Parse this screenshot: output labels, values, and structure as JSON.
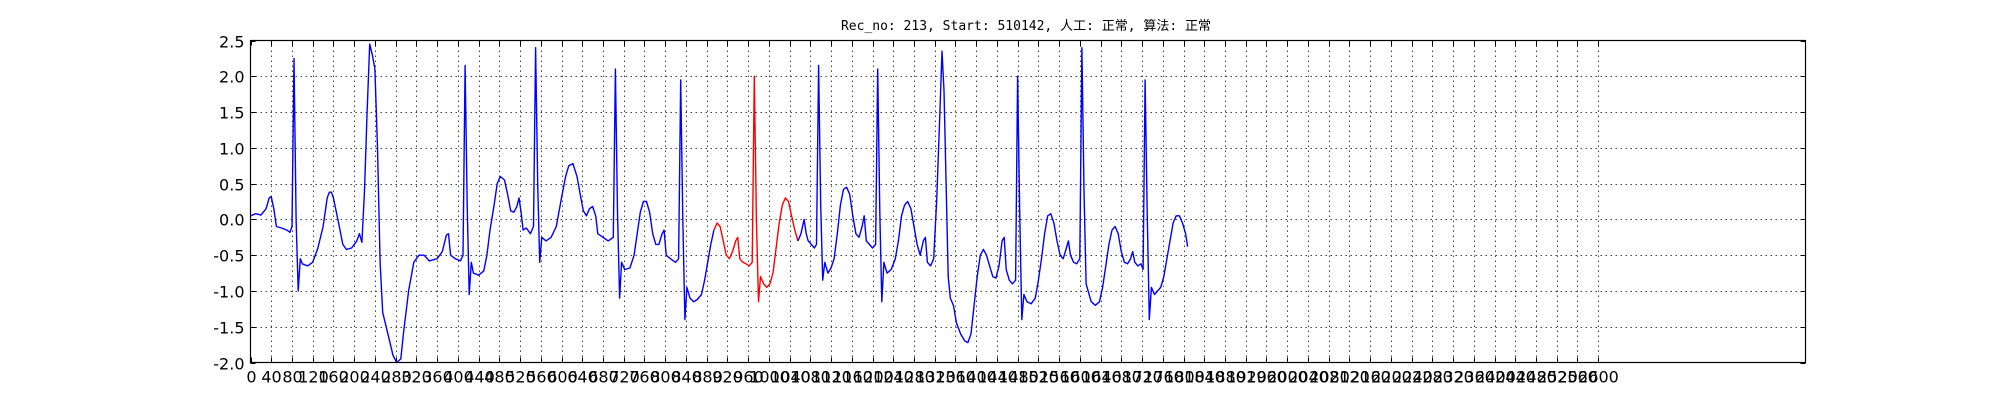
{
  "chart_data": {
    "type": "line",
    "title": "Rec_no: 213, Start: 510142, 人工: 正常, 算法: 正常",
    "xlabel": "",
    "ylabel": "",
    "xlim": [
      0,
      3000
    ],
    "ylim": [
      -2.0,
      2.5
    ],
    "grid": true,
    "yticks": [
      -2.0,
      -1.5,
      -1.0,
      -0.5,
      0.0,
      0.5,
      1.0,
      1.5,
      2.0,
      2.5
    ],
    "ytick_labels": [
      "-2.0",
      "-1.5",
      "-1.0",
      "-0.5",
      "0.0",
      "0.5",
      "1.0",
      "1.5",
      "2.0",
      "2.5"
    ],
    "xticks": [
      0,
      40,
      80,
      120,
      160,
      200,
      240,
      280,
      320,
      360,
      400,
      440,
      480,
      520,
      560,
      600,
      640,
      680,
      720,
      760,
      800,
      840,
      880,
      920,
      960,
      1000,
      1040,
      1080,
      1120,
      1160,
      1200,
      1240,
      1280,
      1320,
      1360,
      1400,
      1440,
      1480,
      1520,
      1560,
      1600,
      1640,
      1680,
      1720,
      1760,
      1800,
      1840,
      1880,
      1920,
      1960,
      2000,
      2040,
      2080,
      2120,
      2160,
      2200,
      2240,
      2280,
      2320,
      2360,
      2400,
      2440,
      2480,
      2520,
      2560,
      2600
    ],
    "series": [
      {
        "color": "#0000ff",
        "points": [
          [
            0,
            0.05
          ],
          [
            10,
            0.08
          ],
          [
            20,
            0.06
          ],
          [
            30,
            0.15
          ],
          [
            36,
            0.3
          ],
          [
            40,
            0.32
          ],
          [
            45,
            0.15
          ],
          [
            50,
            -0.1
          ],
          [
            60,
            -0.12
          ],
          [
            70,
            -0.15
          ],
          [
            76,
            -0.18
          ],
          [
            80,
            -0.1
          ],
          [
            84,
            2.25
          ],
          [
            88,
            0.0
          ],
          [
            92,
            -1.0
          ],
          [
            96,
            -0.55
          ],
          [
            100,
            -0.62
          ],
          [
            110,
            -0.65
          ],
          [
            120,
            -0.6
          ],
          [
            130,
            -0.4
          ],
          [
            140,
            -0.1
          ],
          [
            148,
            0.3
          ],
          [
            152,
            0.38
          ],
          [
            156,
            0.38
          ],
          [
            160,
            0.3
          ],
          [
            170,
            -0.05
          ],
          [
            178,
            -0.35
          ],
          [
            185,
            -0.42
          ],
          [
            195,
            -0.4
          ],
          [
            205,
            -0.3
          ],
          [
            210,
            -0.2
          ],
          [
            215,
            -0.32
          ],
          [
            220,
            0.4
          ],
          [
            225,
            1.5
          ],
          [
            230,
            2.45
          ],
          [
            235,
            2.3
          ],
          [
            240,
            2.1
          ],
          [
            245,
            1.0
          ],
          [
            250,
            -0.6
          ],
          [
            255,
            -1.3
          ],
          [
            265,
            -1.6
          ],
          [
            275,
            -1.9
          ],
          [
            282,
            -2.0
          ],
          [
            290,
            -1.95
          ],
          [
            295,
            -1.6
          ],
          [
            305,
            -1.0
          ],
          [
            315,
            -0.6
          ],
          [
            325,
            -0.5
          ],
          [
            335,
            -0.5
          ],
          [
            345,
            -0.58
          ],
          [
            360,
            -0.55
          ],
          [
            370,
            -0.45
          ],
          [
            378,
            -0.22
          ],
          [
            382,
            -0.2
          ],
          [
            386,
            -0.5
          ],
          [
            395,
            -0.55
          ],
          [
            405,
            -0.58
          ],
          [
            410,
            -0.5
          ],
          [
            414,
            2.15
          ],
          [
            418,
            0.2
          ],
          [
            422,
            -1.05
          ],
          [
            426,
            -0.6
          ],
          [
            430,
            -0.75
          ],
          [
            440,
            -0.78
          ],
          [
            450,
            -0.72
          ],
          [
            456,
            -0.5
          ],
          [
            462,
            -0.15
          ],
          [
            470,
            0.2
          ],
          [
            476,
            0.5
          ],
          [
            482,
            0.6
          ],
          [
            490,
            0.55
          ],
          [
            496,
            0.35
          ],
          [
            502,
            0.12
          ],
          [
            508,
            0.1
          ],
          [
            514,
            0.18
          ],
          [
            518,
            0.3
          ],
          [
            522,
            0.1
          ],
          [
            526,
            -0.15
          ],
          [
            532,
            -0.12
          ],
          [
            540,
            -0.2
          ],
          [
            546,
            -0.1
          ],
          [
            550,
            2.4
          ],
          [
            554,
            0.5
          ],
          [
            558,
            -0.6
          ],
          [
            562,
            -0.25
          ],
          [
            570,
            -0.3
          ],
          [
            580,
            -0.25
          ],
          [
            590,
            -0.1
          ],
          [
            600,
            0.3
          ],
          [
            608,
            0.6
          ],
          [
            614,
            0.75
          ],
          [
            622,
            0.78
          ],
          [
            630,
            0.6
          ],
          [
            636,
            0.35
          ],
          [
            642,
            0.12
          ],
          [
            648,
            0.05
          ],
          [
            654,
            0.15
          ],
          [
            660,
            0.18
          ],
          [
            666,
            0.05
          ],
          [
            670,
            -0.2
          ],
          [
            680,
            -0.25
          ],
          [
            690,
            -0.3
          ],
          [
            700,
            -0.25
          ],
          [
            704,
            2.1
          ],
          [
            708,
            0.1
          ],
          [
            712,
            -1.1
          ],
          [
            716,
            -0.6
          ],
          [
            722,
            -0.7
          ],
          [
            732,
            -0.68
          ],
          [
            740,
            -0.5
          ],
          [
            746,
            -0.2
          ],
          [
            752,
            0.1
          ],
          [
            758,
            0.25
          ],
          [
            764,
            0.25
          ],
          [
            770,
            0.1
          ],
          [
            776,
            -0.2
          ],
          [
            782,
            -0.35
          ],
          [
            788,
            -0.35
          ],
          [
            794,
            -0.2
          ],
          [
            798,
            -0.15
          ],
          [
            802,
            -0.5
          ],
          [
            810,
            -0.55
          ],
          [
            820,
            -0.6
          ],
          [
            826,
            -0.55
          ],
          [
            830,
            1.95
          ],
          [
            834,
            0.0
          ],
          [
            838,
            -1.4
          ],
          [
            842,
            -0.95
          ],
          [
            848,
            -1.1
          ],
          [
            855,
            -1.15
          ],
          [
            862,
            -1.12
          ],
          [
            870,
            -1.05
          ],
          [
            876,
            -0.85
          ],
          [
            882,
            -0.6
          ],
          [
            888,
            -0.35
          ],
          [
            894,
            -0.15
          ]
        ]
      },
      {
        "color": "#ff0000",
        "points": [
          [
            894,
            -0.15
          ],
          [
            900,
            -0.05
          ],
          [
            906,
            -0.1
          ],
          [
            912,
            -0.3
          ],
          [
            918,
            -0.5
          ],
          [
            924,
            -0.55
          ],
          [
            930,
            -0.45
          ],
          [
            936,
            -0.3
          ],
          [
            940,
            -0.25
          ],
          [
            944,
            -0.55
          ],
          [
            950,
            -0.6
          ],
          [
            956,
            -0.62
          ],
          [
            962,
            -0.65
          ],
          [
            968,
            -0.6
          ],
          [
            972,
            2.0
          ],
          [
            976,
            0.0
          ],
          [
            980,
            -1.15
          ],
          [
            984,
            -0.8
          ],
          [
            990,
            -0.9
          ],
          [
            996,
            -0.95
          ],
          [
            1002,
            -0.9
          ],
          [
            1008,
            -0.75
          ],
          [
            1014,
            -0.4
          ],
          [
            1020,
            -0.05
          ],
          [
            1026,
            0.2
          ],
          [
            1032,
            0.3
          ],
          [
            1038,
            0.25
          ],
          [
            1044,
            0.05
          ],
          [
            1050,
            -0.15
          ],
          [
            1056,
            -0.3
          ]
        ]
      },
      {
        "color": "#0000ff",
        "points": [
          [
            1056,
            -0.3
          ],
          [
            1062,
            -0.2
          ],
          [
            1068,
            0.0
          ],
          [
            1072,
            -0.2
          ],
          [
            1076,
            -0.3
          ],
          [
            1082,
            -0.35
          ],
          [
            1088,
            -0.4
          ],
          [
            1092,
            -0.35
          ],
          [
            1096,
            2.15
          ],
          [
            1100,
            0.2
          ],
          [
            1104,
            -0.85
          ],
          [
            1108,
            -0.6
          ],
          [
            1114,
            -0.75
          ],
          [
            1120,
            -0.68
          ],
          [
            1126,
            -0.55
          ],
          [
            1132,
            -0.2
          ],
          [
            1138,
            0.2
          ],
          [
            1144,
            0.42
          ],
          [
            1150,
            0.45
          ],
          [
            1156,
            0.35
          ],
          [
            1162,
            0.05
          ],
          [
            1168,
            -0.2
          ],
          [
            1174,
            -0.25
          ],
          [
            1180,
            -0.1
          ],
          [
            1184,
            0.05
          ],
          [
            1188,
            -0.3
          ],
          [
            1194,
            -0.35
          ],
          [
            1200,
            -0.4
          ],
          [
            1206,
            -0.35
          ],
          [
            1210,
            2.1
          ],
          [
            1214,
            0.1
          ],
          [
            1218,
            -1.15
          ],
          [
            1222,
            -0.6
          ],
          [
            1228,
            -0.75
          ],
          [
            1236,
            -0.7
          ],
          [
            1244,
            -0.55
          ],
          [
            1250,
            -0.3
          ],
          [
            1256,
            0.05
          ],
          [
            1262,
            0.2
          ],
          [
            1268,
            0.25
          ],
          [
            1274,
            0.15
          ],
          [
            1280,
            -0.1
          ],
          [
            1286,
            -0.35
          ],
          [
            1292,
            -0.5
          ],
          [
            1298,
            -0.3
          ],
          [
            1302,
            -0.25
          ],
          [
            1306,
            -0.6
          ],
          [
            1312,
            -0.65
          ],
          [
            1318,
            -0.55
          ],
          [
            1324,
            0.3
          ],
          [
            1330,
            1.5
          ],
          [
            1334,
            2.35
          ],
          [
            1338,
            1.8
          ],
          [
            1342,
            0.5
          ],
          [
            1346,
            -0.8
          ],
          [
            1350,
            -1.1
          ],
          [
            1356,
            -1.2
          ],
          [
            1362,
            -1.45
          ],
          [
            1370,
            -1.6
          ],
          [
            1378,
            -1.7
          ],
          [
            1384,
            -1.72
          ],
          [
            1390,
            -1.6
          ],
          [
            1396,
            -1.2
          ],
          [
            1402,
            -0.8
          ],
          [
            1408,
            -0.5
          ],
          [
            1414,
            -0.42
          ],
          [
            1420,
            -0.5
          ],
          [
            1426,
            -0.65
          ],
          [
            1432,
            -0.8
          ],
          [
            1438,
            -0.82
          ],
          [
            1444,
            -0.65
          ],
          [
            1450,
            -0.3
          ],
          [
            1454,
            -0.25
          ],
          [
            1458,
            -0.7
          ],
          [
            1464,
            -0.85
          ],
          [
            1470,
            -0.9
          ],
          [
            1476,
            -0.85
          ],
          [
            1480,
            2.0
          ],
          [
            1484,
            0.1
          ],
          [
            1488,
            -1.4
          ],
          [
            1492,
            -1.05
          ],
          [
            1498,
            -1.15
          ],
          [
            1506,
            -1.18
          ],
          [
            1514,
            -1.1
          ],
          [
            1520,
            -0.85
          ],
          [
            1526,
            -0.55
          ],
          [
            1532,
            -0.2
          ],
          [
            1538,
            0.05
          ],
          [
            1544,
            0.08
          ],
          [
            1550,
            -0.05
          ],
          [
            1556,
            -0.3
          ],
          [
            1562,
            -0.5
          ],
          [
            1568,
            -0.55
          ],
          [
            1574,
            -0.4
          ],
          [
            1578,
            -0.3
          ],
          [
            1582,
            -0.5
          ],
          [
            1588,
            -0.6
          ],
          [
            1594,
            -0.62
          ],
          [
            1600,
            -0.55
          ],
          [
            1604,
            2.4
          ],
          [
            1608,
            0.4
          ],
          [
            1612,
            -0.9
          ],
          [
            1616,
            -1.0
          ],
          [
            1622,
            -1.15
          ],
          [
            1630,
            -1.2
          ],
          [
            1638,
            -1.15
          ],
          [
            1644,
            -0.95
          ],
          [
            1650,
            -0.65
          ],
          [
            1656,
            -0.35
          ],
          [
            1662,
            -0.15
          ],
          [
            1668,
            -0.1
          ],
          [
            1674,
            -0.2
          ],
          [
            1680,
            -0.45
          ],
          [
            1686,
            -0.6
          ],
          [
            1692,
            -0.62
          ],
          [
            1698,
            -0.55
          ],
          [
            1702,
            -0.45
          ],
          [
            1706,
            -0.6
          ],
          [
            1712,
            -0.65
          ],
          [
            1718,
            -0.62
          ],
          [
            1722,
            -0.7
          ],
          [
            1726,
            1.95
          ],
          [
            1730,
            0.1
          ],
          [
            1734,
            -1.4
          ],
          [
            1738,
            -0.95
          ],
          [
            1744,
            -1.05
          ],
          [
            1750,
            -1.0
          ],
          [
            1756,
            -0.95
          ],
          [
            1762,
            -0.8
          ],
          [
            1768,
            -0.55
          ],
          [
            1774,
            -0.3
          ],
          [
            1780,
            -0.05
          ],
          [
            1786,
            0.05
          ],
          [
            1792,
            0.05
          ],
          [
            1798,
            -0.05
          ],
          [
            1804,
            -0.2
          ],
          [
            1808,
            -0.38
          ]
        ]
      }
    ]
  }
}
